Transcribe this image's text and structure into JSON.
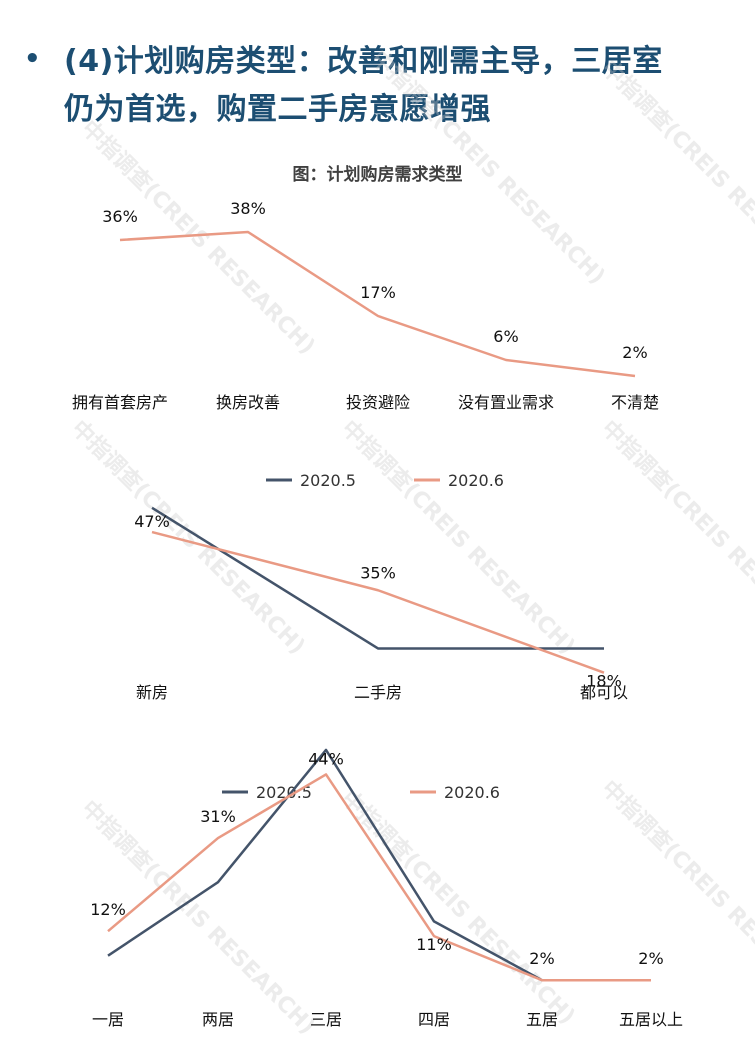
{
  "heading": {
    "bullet": "•",
    "line1": "(4)计划购房类型：改善和刚需主导，三居室",
    "line2": "仍为首选，购置二手房意愿增强"
  },
  "chart_title": "图：计划购房需求类型",
  "watermark": "中指调查(CREIS RESEARCH)",
  "colors": {
    "series_2020_5": "#44546a",
    "series_2020_6": "#e99a84",
    "heading": "#1c4e72"
  },
  "chart_data": [
    {
      "type": "line",
      "title": "图：计划购房需求类型",
      "categories": [
        "拥有首套房产",
        "换房改善",
        "投资避险",
        "没有置业需求",
        "不清楚"
      ],
      "series": [
        {
          "values": [
            36,
            38,
            17,
            6,
            2
          ],
          "labels": [
            "36%",
            "38%",
            "17%",
            "6%",
            "2%"
          ]
        }
      ],
      "ylim": [
        0,
        40
      ],
      "grid": false
    },
    {
      "type": "line",
      "categories": [
        "新房",
        "二手房",
        "都可以"
      ],
      "series": [
        {
          "name": "2020.5",
          "values": [
            52,
            23,
            23
          ]
        },
        {
          "name": "2020.6",
          "values": [
            47,
            35,
            18
          ],
          "labels": [
            "47%",
            "35%",
            "18%"
          ]
        }
      ],
      "legend": "top-center",
      "grid": false
    },
    {
      "type": "line",
      "categories": [
        "一居",
        "两居",
        "三居",
        "四居",
        "五居",
        "五居以上"
      ],
      "series": [
        {
          "name": "2020.5",
          "values": [
            7,
            22,
            49,
            14,
            2,
            2
          ]
        },
        {
          "name": "2020.6",
          "values": [
            12,
            31,
            44,
            11,
            2,
            2
          ],
          "labels": [
            "12%",
            "31%",
            "44%",
            "11%",
            "2%",
            "2%"
          ]
        }
      ],
      "legend": "top-center",
      "grid": false
    }
  ]
}
